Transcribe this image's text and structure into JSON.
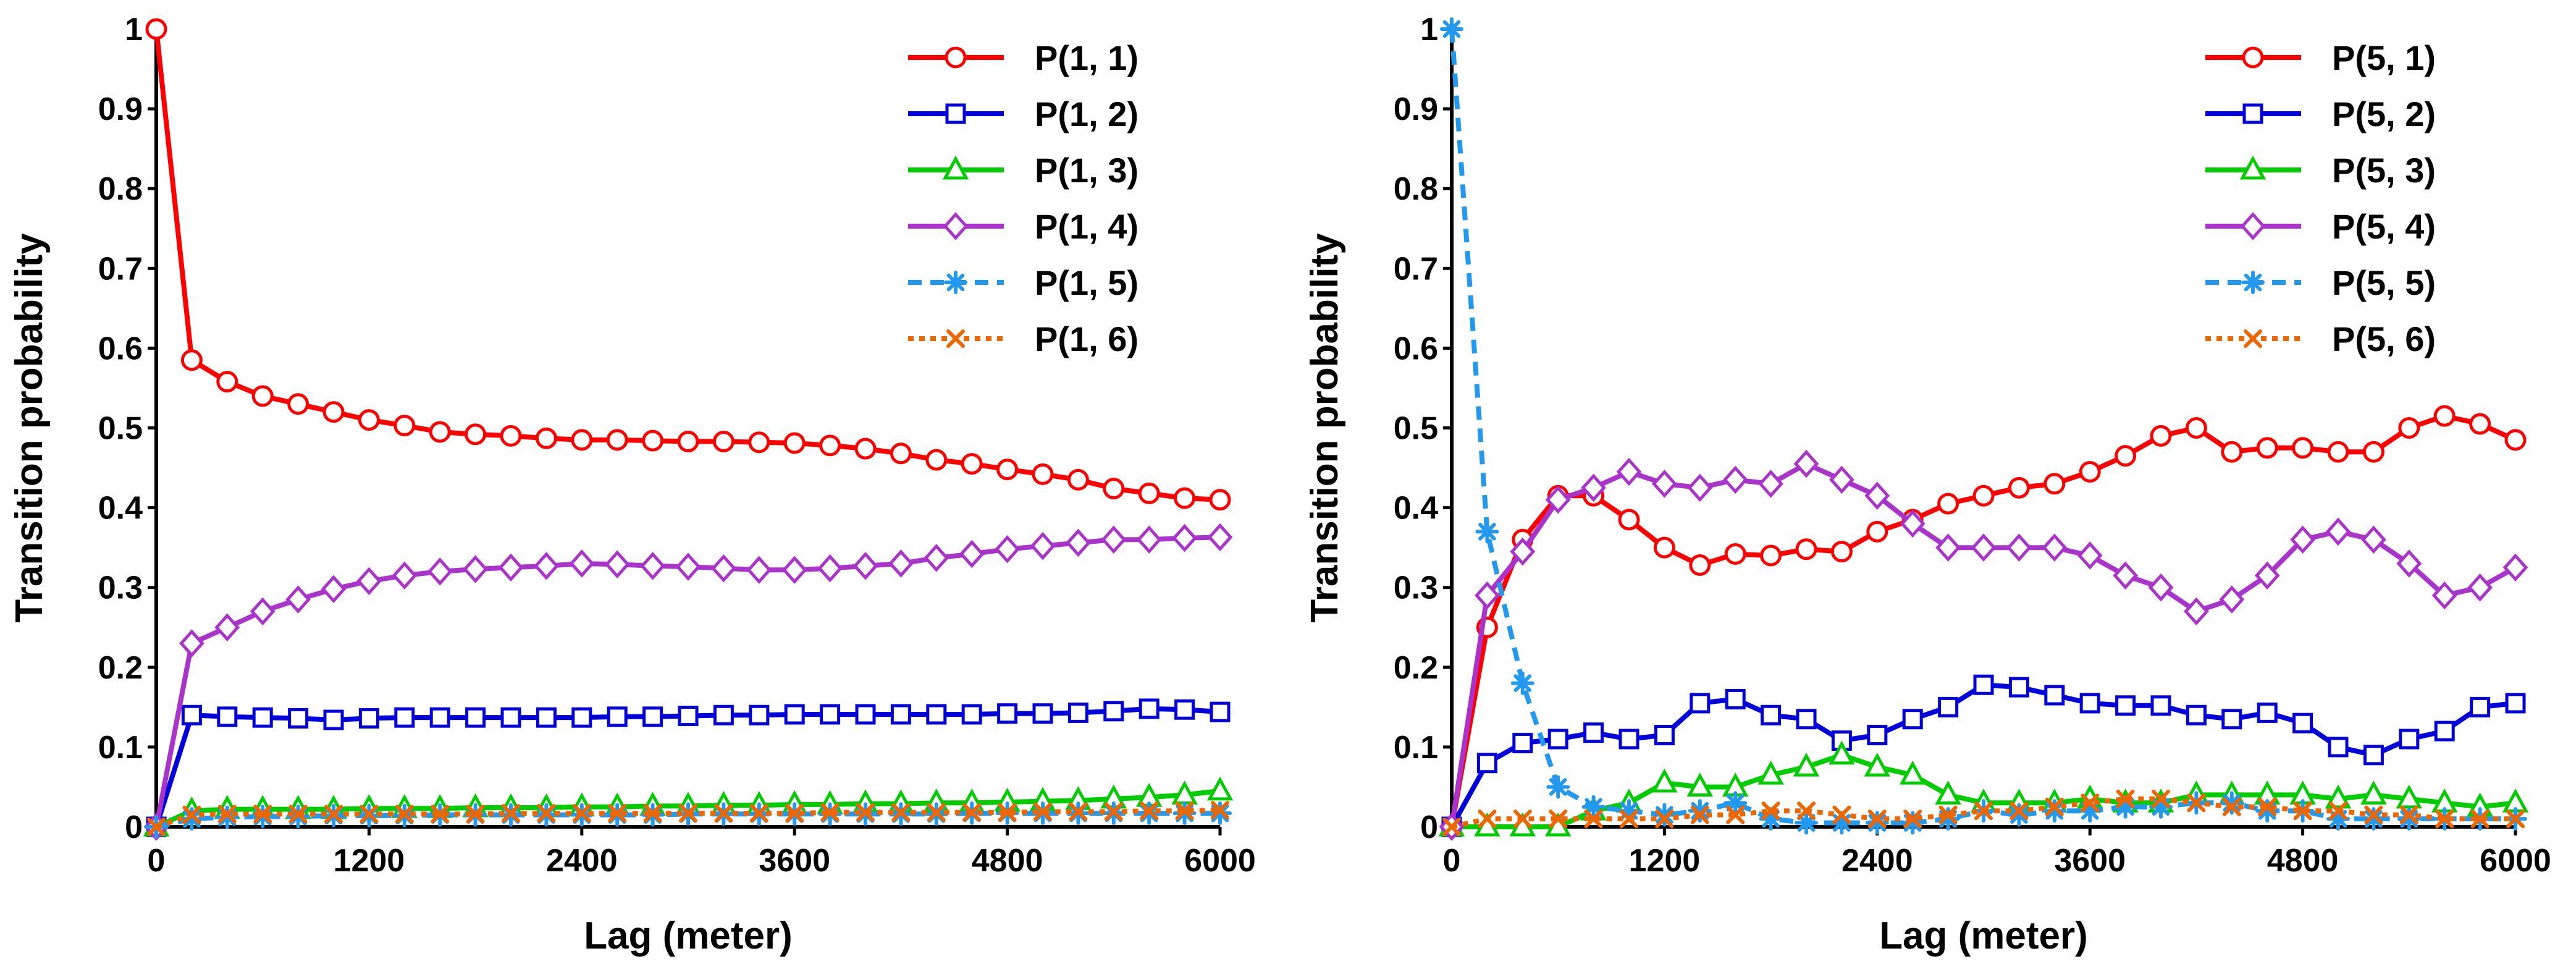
{
  "chart_data": [
    {
      "type": "line",
      "title": "",
      "xlabel": "Lag (meter)",
      "ylabel": "Transition probability",
      "xlim": [
        0,
        6000
      ],
      "ylim": [
        0,
        1
      ],
      "xticks": [
        "0",
        "1200",
        "2400",
        "3600",
        "4800",
        "6000"
      ],
      "yticks": [
        "0",
        "0.1",
        "0.2",
        "0.3",
        "0.4",
        "0.5",
        "0.6",
        "0.7",
        "0.8",
        "0.9",
        "1"
      ],
      "legend_position": "top-right",
      "x": [
        0,
        200,
        400,
        600,
        800,
        1000,
        1200,
        1400,
        1600,
        1800,
        2000,
        2200,
        2400,
        2600,
        2800,
        3000,
        3200,
        3400,
        3600,
        3800,
        4000,
        4200,
        4400,
        4600,
        4800,
        5000,
        5200,
        5400,
        5600,
        5800,
        6000
      ],
      "series": [
        {
          "name": "P(1, 1)",
          "color": "#ff0000",
          "marker": "circle",
          "dash": "solid",
          "values": [
            1.0,
            0.585,
            0.558,
            0.54,
            0.53,
            0.52,
            0.51,
            0.503,
            0.495,
            0.492,
            0.49,
            0.487,
            0.485,
            0.485,
            0.484,
            0.483,
            0.483,
            0.482,
            0.481,
            0.478,
            0.474,
            0.468,
            0.46,
            0.455,
            0.448,
            0.442,
            0.435,
            0.424,
            0.418,
            0.412,
            0.41
          ]
        },
        {
          "name": "P(1, 2)",
          "color": "#0000dd",
          "marker": "square",
          "dash": "solid",
          "values": [
            0.0,
            0.14,
            0.138,
            0.137,
            0.136,
            0.134,
            0.136,
            0.137,
            0.137,
            0.137,
            0.137,
            0.137,
            0.137,
            0.138,
            0.138,
            0.139,
            0.14,
            0.14,
            0.141,
            0.141,
            0.141,
            0.141,
            0.141,
            0.141,
            0.142,
            0.142,
            0.143,
            0.145,
            0.148,
            0.147,
            0.144
          ]
        },
        {
          "name": "P(1, 3)",
          "color": "#00cc00",
          "marker": "triangle",
          "dash": "solid",
          "values": [
            0.0,
            0.02,
            0.022,
            0.022,
            0.022,
            0.022,
            0.023,
            0.023,
            0.023,
            0.024,
            0.024,
            0.024,
            0.025,
            0.025,
            0.026,
            0.026,
            0.027,
            0.027,
            0.028,
            0.028,
            0.029,
            0.029,
            0.03,
            0.03,
            0.031,
            0.032,
            0.033,
            0.035,
            0.037,
            0.04,
            0.045
          ]
        },
        {
          "name": "P(1, 4)",
          "color": "#aa33cc",
          "marker": "diamond",
          "dash": "solid",
          "values": [
            0.0,
            0.23,
            0.25,
            0.27,
            0.285,
            0.298,
            0.308,
            0.315,
            0.32,
            0.323,
            0.325,
            0.327,
            0.33,
            0.329,
            0.327,
            0.326,
            0.324,
            0.322,
            0.322,
            0.324,
            0.327,
            0.33,
            0.337,
            0.342,
            0.348,
            0.352,
            0.356,
            0.36,
            0.36,
            0.362,
            0.363
          ]
        },
        {
          "name": "P(1, 5)",
          "color": "#2299ee",
          "marker": "asterisk",
          "dash": "dashed",
          "values": [
            0.0,
            0.01,
            0.012,
            0.013,
            0.013,
            0.014,
            0.014,
            0.014,
            0.015,
            0.015,
            0.015,
            0.015,
            0.015,
            0.015,
            0.015,
            0.016,
            0.016,
            0.016,
            0.016,
            0.016,
            0.016,
            0.016,
            0.016,
            0.017,
            0.017,
            0.017,
            0.017,
            0.017,
            0.017,
            0.017,
            0.017
          ]
        },
        {
          "name": "P(1, 6)",
          "color": "#ee6600",
          "marker": "cross",
          "dash": "dotted",
          "values": [
            0.0,
            0.015,
            0.016,
            0.016,
            0.016,
            0.016,
            0.016,
            0.016,
            0.016,
            0.016,
            0.017,
            0.017,
            0.017,
            0.017,
            0.017,
            0.017,
            0.017,
            0.017,
            0.017,
            0.018,
            0.018,
            0.018,
            0.018,
            0.018,
            0.018,
            0.019,
            0.019,
            0.019,
            0.02,
            0.02,
            0.021
          ]
        }
      ]
    },
    {
      "type": "line",
      "title": "",
      "xlabel": "Lag (meter)",
      "ylabel": "Transition probability",
      "xlim": [
        0,
        6000
      ],
      "ylim": [
        0,
        1
      ],
      "xticks": [
        "0",
        "1200",
        "2400",
        "3600",
        "4800",
        "6000"
      ],
      "yticks": [
        "0",
        "0.1",
        "0.2",
        "0.3",
        "0.4",
        "0.5",
        "0.6",
        "0.7",
        "0.8",
        "0.9",
        "1"
      ],
      "legend_position": "top-right",
      "x": [
        0,
        200,
        400,
        600,
        800,
        1000,
        1200,
        1400,
        1600,
        1800,
        2000,
        2200,
        2400,
        2600,
        2800,
        3000,
        3200,
        3400,
        3600,
        3800,
        4000,
        4200,
        4400,
        4600,
        4800,
        5000,
        5200,
        5400,
        5600,
        5800,
        6000
      ],
      "series": [
        {
          "name": "P(5, 1)",
          "color": "#ff0000",
          "marker": "circle",
          "dash": "solid",
          "values": [
            0.0,
            0.25,
            0.36,
            0.415,
            0.415,
            0.385,
            0.35,
            0.328,
            0.342,
            0.34,
            0.348,
            0.345,
            0.37,
            0.385,
            0.405,
            0.415,
            0.425,
            0.43,
            0.445,
            0.465,
            0.49,
            0.5,
            0.47,
            0.475,
            0.475,
            0.47,
            0.47,
            0.5,
            0.515,
            0.505,
            0.485
          ]
        },
        {
          "name": "P(5, 2)",
          "color": "#0000dd",
          "marker": "square",
          "dash": "solid",
          "values": [
            0.0,
            0.08,
            0.105,
            0.11,
            0.118,
            0.11,
            0.115,
            0.155,
            0.16,
            0.14,
            0.135,
            0.108,
            0.115,
            0.135,
            0.15,
            0.178,
            0.175,
            0.165,
            0.155,
            0.152,
            0.152,
            0.14,
            0.135,
            0.143,
            0.13,
            0.1,
            0.09,
            0.11,
            0.12,
            0.15,
            0.155
          ]
        },
        {
          "name": "P(5, 3)",
          "color": "#00cc00",
          "marker": "triangle",
          "dash": "solid",
          "values": [
            0.0,
            0.0,
            0.0,
            0.0,
            0.02,
            0.03,
            0.055,
            0.05,
            0.05,
            0.065,
            0.075,
            0.09,
            0.075,
            0.065,
            0.04,
            0.03,
            0.03,
            0.03,
            0.035,
            0.03,
            0.03,
            0.04,
            0.04,
            0.04,
            0.04,
            0.035,
            0.04,
            0.035,
            0.03,
            0.025,
            0.03
          ]
        },
        {
          "name": "P(5, 4)",
          "color": "#aa33cc",
          "marker": "diamond",
          "dash": "solid",
          "values": [
            0.0,
            0.29,
            0.345,
            0.41,
            0.425,
            0.445,
            0.43,
            0.425,
            0.435,
            0.43,
            0.455,
            0.435,
            0.415,
            0.38,
            0.35,
            0.35,
            0.35,
            0.35,
            0.34,
            0.315,
            0.3,
            0.27,
            0.285,
            0.315,
            0.36,
            0.37,
            0.36,
            0.33,
            0.29,
            0.3,
            0.325
          ]
        },
        {
          "name": "P(5, 5)",
          "color": "#2299ee",
          "marker": "asterisk",
          "dash": "dashed",
          "values": [
            1.0,
            0.37,
            0.18,
            0.05,
            0.025,
            0.02,
            0.015,
            0.02,
            0.03,
            0.01,
            0.005,
            0.005,
            0.005,
            0.005,
            0.01,
            0.02,
            0.015,
            0.02,
            0.02,
            0.025,
            0.025,
            0.03,
            0.03,
            0.02,
            0.02,
            0.01,
            0.01,
            0.01,
            0.01,
            0.01,
            0.01
          ]
        },
        {
          "name": "P(5, 6)",
          "color": "#ee6600",
          "marker": "cross",
          "dash": "dotted",
          "values": [
            0.0,
            0.01,
            0.01,
            0.01,
            0.01,
            0.01,
            0.01,
            0.015,
            0.015,
            0.02,
            0.02,
            0.015,
            0.01,
            0.01,
            0.015,
            0.02,
            0.02,
            0.025,
            0.03,
            0.035,
            0.035,
            0.03,
            0.025,
            0.025,
            0.02,
            0.02,
            0.015,
            0.015,
            0.01,
            0.01,
            0.01
          ]
        }
      ]
    }
  ]
}
